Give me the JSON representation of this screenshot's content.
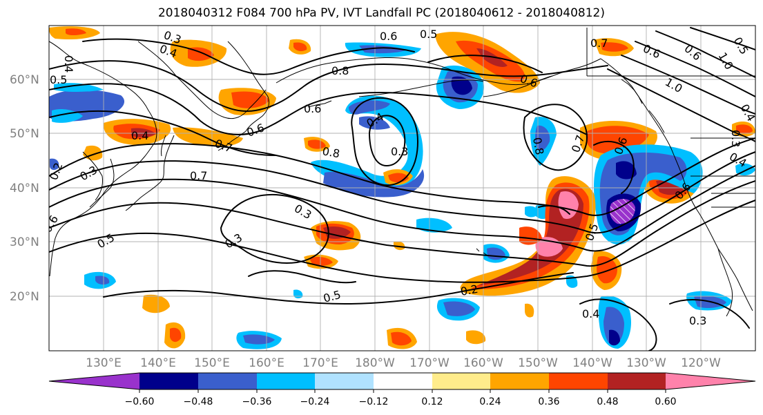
{
  "title": "2018040312 F084 700 hPa PV, IVT Landfall PC (2018040612 - 2018040812)",
  "lat_labels": [
    "60°N",
    "50°N",
    "40°N",
    "30°N",
    "20°N"
  ],
  "lon_labels": [
    "130°E",
    "140°E",
    "150°E",
    "160°E",
    "170°E",
    "180°W",
    "170°W",
    "160°W",
    "150°W",
    "140°W",
    "130°W",
    "120°W"
  ],
  "colorbar": {
    "ticks": [
      "−0.60",
      "−0.48",
      "−0.36",
      "−0.24",
      "−0.12",
      "0.12",
      "0.24",
      "0.36",
      "0.48",
      "0.60"
    ],
    "colors": [
      "#9932cc",
      "#00008b",
      "#3a5fcd",
      "#00bfff",
      "#b0e2ff",
      "#ffffff",
      "#ffec8b",
      "#ffa500",
      "#ff4500",
      "#b22222",
      "#ff82ab"
    ]
  },
  "contour_labels": [
    "0.3",
    "0.4",
    "0.6",
    "0.5",
    "0.8",
    "0.7",
    "0.6",
    "0.4",
    "0.5",
    "0.6",
    "0.7",
    "0.4",
    "0.3",
    "0.2",
    "0.7",
    "0.8",
    "0.6",
    "0.3",
    "0.4",
    "0.3",
    "0.5",
    "0.3",
    "0.2",
    "0.8",
    "0.6",
    "1.0",
    "0.5",
    "0.4",
    "0.3",
    "0.6",
    "0.6",
    "0.5",
    "0.6",
    "0.4",
    "0.3",
    "0.7",
    "0.6",
    "1.0",
    "0.5",
    "0.4"
  ]
}
